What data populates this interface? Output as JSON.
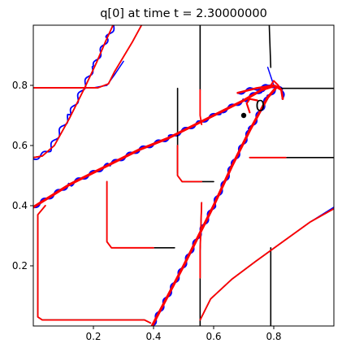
{
  "chart_data": {
    "type": "line",
    "title": "q[0] at time t =     2.30000000",
    "xlabel": "",
    "ylabel": "",
    "xlim": [
      0.0,
      1.0
    ],
    "ylim": [
      0.0,
      1.0
    ],
    "x_ticks": [
      0.2,
      0.4,
      0.6,
      0.8
    ],
    "x_tick_labels": [
      "0.2",
      "0.4",
      "0.6",
      "0.8"
    ],
    "y_ticks": [
      0.2,
      0.4,
      0.6,
      0.8
    ],
    "y_tick_labels": [
      "0.2",
      "0.4",
      "0.6",
      "0.8"
    ],
    "grid": false,
    "colors": {
      "black": "#000000",
      "blue": "#0000ff",
      "red": "#ff0000"
    },
    "annotation": {
      "text": "0",
      "x": 0.755,
      "y": 0.715
    },
    "point": {
      "x": 0.7,
      "y": 0.7
    },
    "series": [
      {
        "color": "blue",
        "width": 2.2,
        "wavy": true,
        "points": [
          [
            0.0,
            0.395
          ],
          [
            0.12,
            0.47
          ],
          [
            0.25,
            0.535
          ],
          [
            0.35,
            0.585
          ],
          [
            0.45,
            0.625
          ],
          [
            0.55,
            0.675
          ],
          [
            0.62,
            0.71
          ],
          [
            0.7,
            0.75
          ],
          [
            0.76,
            0.785
          ],
          [
            0.8,
            0.798
          ]
        ]
      },
      {
        "color": "blue",
        "width": 2.2,
        "wavy": true,
        "points": [
          [
            0.395,
            0.0
          ],
          [
            0.5,
            0.2
          ],
          [
            0.6,
            0.4
          ],
          [
            0.66,
            0.53
          ],
          [
            0.72,
            0.65
          ],
          [
            0.78,
            0.76
          ],
          [
            0.81,
            0.795
          ]
        ]
      },
      {
        "color": "blue",
        "width": 2.0,
        "wavy": true,
        "points": [
          [
            0.68,
            0.775
          ],
          [
            0.74,
            0.79
          ],
          [
            0.8,
            0.8
          ],
          [
            0.825,
            0.785
          ],
          [
            0.83,
            0.755
          ]
        ]
      },
      {
        "color": "blue",
        "width": 1.8,
        "wavy": true,
        "points": [
          [
            0.0,
            0.555
          ],
          [
            0.05,
            0.58
          ],
          [
            0.12,
            0.7
          ],
          [
            0.2,
            0.86
          ],
          [
            0.245,
            0.955
          ],
          [
            0.27,
            1.0
          ]
        ]
      },
      {
        "color": "blue",
        "width": 1.5,
        "wavy": false,
        "points": [
          [
            0.78,
            0.86
          ],
          [
            0.8,
            0.8
          ],
          [
            0.81,
            0.795
          ]
        ]
      },
      {
        "color": "blue",
        "width": 1.5,
        "wavy": false,
        "points": [
          [
            0.555,
            0.02
          ],
          [
            0.59,
            0.09
          ],
          [
            0.66,
            0.155
          ],
          [
            0.74,
            0.215
          ],
          [
            0.83,
            0.28
          ],
          [
            0.92,
            0.345
          ],
          [
            1.0,
            0.395
          ]
        ]
      },
      {
        "color": "blue",
        "width": 1.5,
        "wavy": false,
        "points": [
          [
            0.0,
            0.792
          ],
          [
            0.2,
            0.792
          ],
          [
            0.245,
            0.8
          ],
          [
            0.27,
            0.835
          ],
          [
            0.3,
            0.88
          ]
        ]
      },
      {
        "color": "black",
        "width": 1.6,
        "wavy": false,
        "points": [
          [
            0.0,
            0.792
          ],
          [
            0.215,
            0.792
          ],
          [
            0.25,
            0.805
          ],
          [
            0.27,
            0.845
          ],
          [
            0.3,
            0.895
          ],
          [
            0.33,
            0.945
          ],
          [
            0.36,
            1.0
          ]
        ]
      },
      {
        "color": "black",
        "width": 1.6,
        "wavy": false,
        "points": [
          [
            0.0,
            0.56
          ],
          [
            0.03,
            0.565
          ],
          [
            0.07,
            0.6
          ],
          [
            0.12,
            0.69
          ],
          [
            0.17,
            0.79
          ],
          [
            0.21,
            0.875
          ],
          [
            0.24,
            0.945
          ],
          [
            0.265,
            1.0
          ]
        ]
      },
      {
        "color": "black",
        "width": 1.6,
        "wavy": false,
        "points": [
          [
            0.555,
            1.0
          ],
          [
            0.555,
            0.785
          ]
        ]
      },
      {
        "color": "black",
        "width": 1.6,
        "wavy": false,
        "points": [
          [
            0.785,
            1.0
          ],
          [
            0.79,
            0.86
          ]
        ]
      },
      {
        "color": "black",
        "width": 1.6,
        "wavy": false,
        "points": [
          [
            0.82,
            0.79
          ],
          [
            1.0,
            0.79
          ]
        ]
      },
      {
        "color": "black",
        "width": 1.6,
        "wavy": false,
        "points": [
          [
            0.72,
            0.56
          ],
          [
            1.0,
            0.56
          ]
        ]
      },
      {
        "color": "black",
        "width": 1.6,
        "wavy": false,
        "points": [
          [
            0.48,
            0.51
          ],
          [
            0.48,
            0.79
          ]
        ]
      },
      {
        "color": "black",
        "width": 1.6,
        "wavy": false,
        "points": [
          [
            0.48,
            0.6
          ],
          [
            0.48,
            0.5
          ],
          [
            0.495,
            0.48
          ],
          [
            0.6,
            0.48
          ]
        ]
      },
      {
        "color": "black",
        "width": 1.6,
        "wavy": false,
        "points": [
          [
            0.245,
            0.48
          ],
          [
            0.245,
            0.28
          ],
          [
            0.26,
            0.26
          ],
          [
            0.42,
            0.26
          ],
          [
            0.47,
            0.26
          ]
        ]
      },
      {
        "color": "black",
        "width": 1.6,
        "wavy": false,
        "points": [
          [
            0.04,
            0.4
          ],
          [
            0.015,
            0.37
          ],
          [
            0.015,
            0.03
          ],
          [
            0.03,
            0.02
          ],
          [
            0.25,
            0.02
          ],
          [
            0.37,
            0.02
          ],
          [
            0.39,
            0.01
          ]
        ]
      },
      {
        "color": "black",
        "width": 1.6,
        "wavy": false,
        "points": [
          [
            0.555,
            0.0
          ],
          [
            0.555,
            0.25
          ],
          [
            0.56,
            0.41
          ]
        ]
      },
      {
        "color": "black",
        "width": 1.6,
        "wavy": false,
        "points": [
          [
            0.79,
            0.0
          ],
          [
            0.79,
            0.26
          ]
        ]
      },
      {
        "color": "black",
        "width": 1.6,
        "wavy": false,
        "points": [
          [
            0.555,
            0.02
          ],
          [
            0.59,
            0.09
          ],
          [
            0.66,
            0.155
          ],
          [
            0.74,
            0.215
          ],
          [
            0.83,
            0.28
          ],
          [
            0.92,
            0.345
          ],
          [
            1.0,
            0.39
          ]
        ]
      },
      {
        "color": "red",
        "width": 1.8,
        "wavy": false,
        "points": [
          [
            0.0,
            0.792
          ],
          [
            0.215,
            0.792
          ],
          [
            0.25,
            0.805
          ],
          [
            0.27,
            0.845
          ],
          [
            0.3,
            0.895
          ],
          [
            0.33,
            0.945
          ],
          [
            0.36,
            1.0
          ]
        ]
      },
      {
        "color": "red",
        "width": 1.8,
        "wavy": false,
        "points": [
          [
            0.0,
            0.56
          ],
          [
            0.03,
            0.565
          ],
          [
            0.07,
            0.6
          ],
          [
            0.12,
            0.69
          ],
          [
            0.17,
            0.79
          ],
          [
            0.21,
            0.875
          ],
          [
            0.24,
            0.945
          ],
          [
            0.265,
            1.0
          ]
        ]
      },
      {
        "color": "red",
        "width": 1.8,
        "wavy": false,
        "points": [
          [
            0.555,
            0.785
          ],
          [
            0.555,
            0.7
          ],
          [
            0.56,
            0.67
          ]
        ]
      },
      {
        "color": "red",
        "width": 1.8,
        "wavy": false,
        "points": [
          [
            0.72,
            0.56
          ],
          [
            0.84,
            0.56
          ]
        ]
      },
      {
        "color": "red",
        "width": 1.8,
        "wavy": false,
        "points": [
          [
            0.48,
            0.6
          ],
          [
            0.48,
            0.5
          ],
          [
            0.495,
            0.48
          ],
          [
            0.56,
            0.48
          ]
        ]
      },
      {
        "color": "red",
        "width": 1.8,
        "wavy": false,
        "points": [
          [
            0.245,
            0.48
          ],
          [
            0.245,
            0.28
          ],
          [
            0.26,
            0.26
          ],
          [
            0.4,
            0.26
          ]
        ]
      },
      {
        "color": "red",
        "width": 1.8,
        "wavy": false,
        "points": [
          [
            0.04,
            0.4
          ],
          [
            0.015,
            0.37
          ],
          [
            0.015,
            0.03
          ],
          [
            0.03,
            0.02
          ],
          [
            0.25,
            0.02
          ],
          [
            0.37,
            0.02
          ],
          [
            0.39,
            0.01
          ]
        ]
      },
      {
        "color": "red",
        "width": 1.8,
        "wavy": false,
        "points": [
          [
            0.555,
            0.16
          ],
          [
            0.555,
            0.25
          ],
          [
            0.56,
            0.41
          ]
        ]
      },
      {
        "color": "red",
        "width": 1.8,
        "wavy": false,
        "points": [
          [
            0.555,
            0.02
          ],
          [
            0.59,
            0.09
          ],
          [
            0.66,
            0.155
          ],
          [
            0.74,
            0.215
          ],
          [
            0.83,
            0.28
          ],
          [
            0.92,
            0.345
          ],
          [
            1.0,
            0.39
          ]
        ]
      },
      {
        "color": "red",
        "width": 2.0,
        "wavy": false,
        "points": [
          [
            0.79,
            0.8
          ],
          [
            0.8,
            0.815
          ],
          [
            0.815,
            0.8
          ],
          [
            0.825,
            0.785
          ]
        ]
      },
      {
        "color": "red",
        "width": 3.2,
        "wavy": false,
        "points": [
          [
            0.0,
            0.395
          ],
          [
            0.12,
            0.47
          ],
          [
            0.25,
            0.535
          ],
          [
            0.35,
            0.585
          ],
          [
            0.45,
            0.625
          ],
          [
            0.55,
            0.675
          ],
          [
            0.62,
            0.71
          ],
          [
            0.7,
            0.75
          ],
          [
            0.76,
            0.785
          ],
          [
            0.8,
            0.798
          ]
        ]
      },
      {
        "color": "red",
        "width": 3.2,
        "wavy": false,
        "points": [
          [
            0.395,
            0.0
          ],
          [
            0.5,
            0.2
          ],
          [
            0.6,
            0.4
          ],
          [
            0.66,
            0.53
          ],
          [
            0.72,
            0.65
          ],
          [
            0.78,
            0.76
          ],
          [
            0.81,
            0.795
          ]
        ]
      },
      {
        "color": "red",
        "width": 2.6,
        "wavy": false,
        "points": [
          [
            0.68,
            0.775
          ],
          [
            0.74,
            0.79
          ],
          [
            0.8,
            0.8
          ],
          [
            0.825,
            0.785
          ],
          [
            0.83,
            0.755
          ]
        ]
      },
      {
        "color": "red",
        "width": 2.2,
        "wavy": false,
        "points": [
          [
            0.72,
            0.71
          ],
          [
            0.71,
            0.74
          ],
          [
            0.72,
            0.755
          ],
          [
            0.745,
            0.75
          ]
        ]
      }
    ]
  }
}
